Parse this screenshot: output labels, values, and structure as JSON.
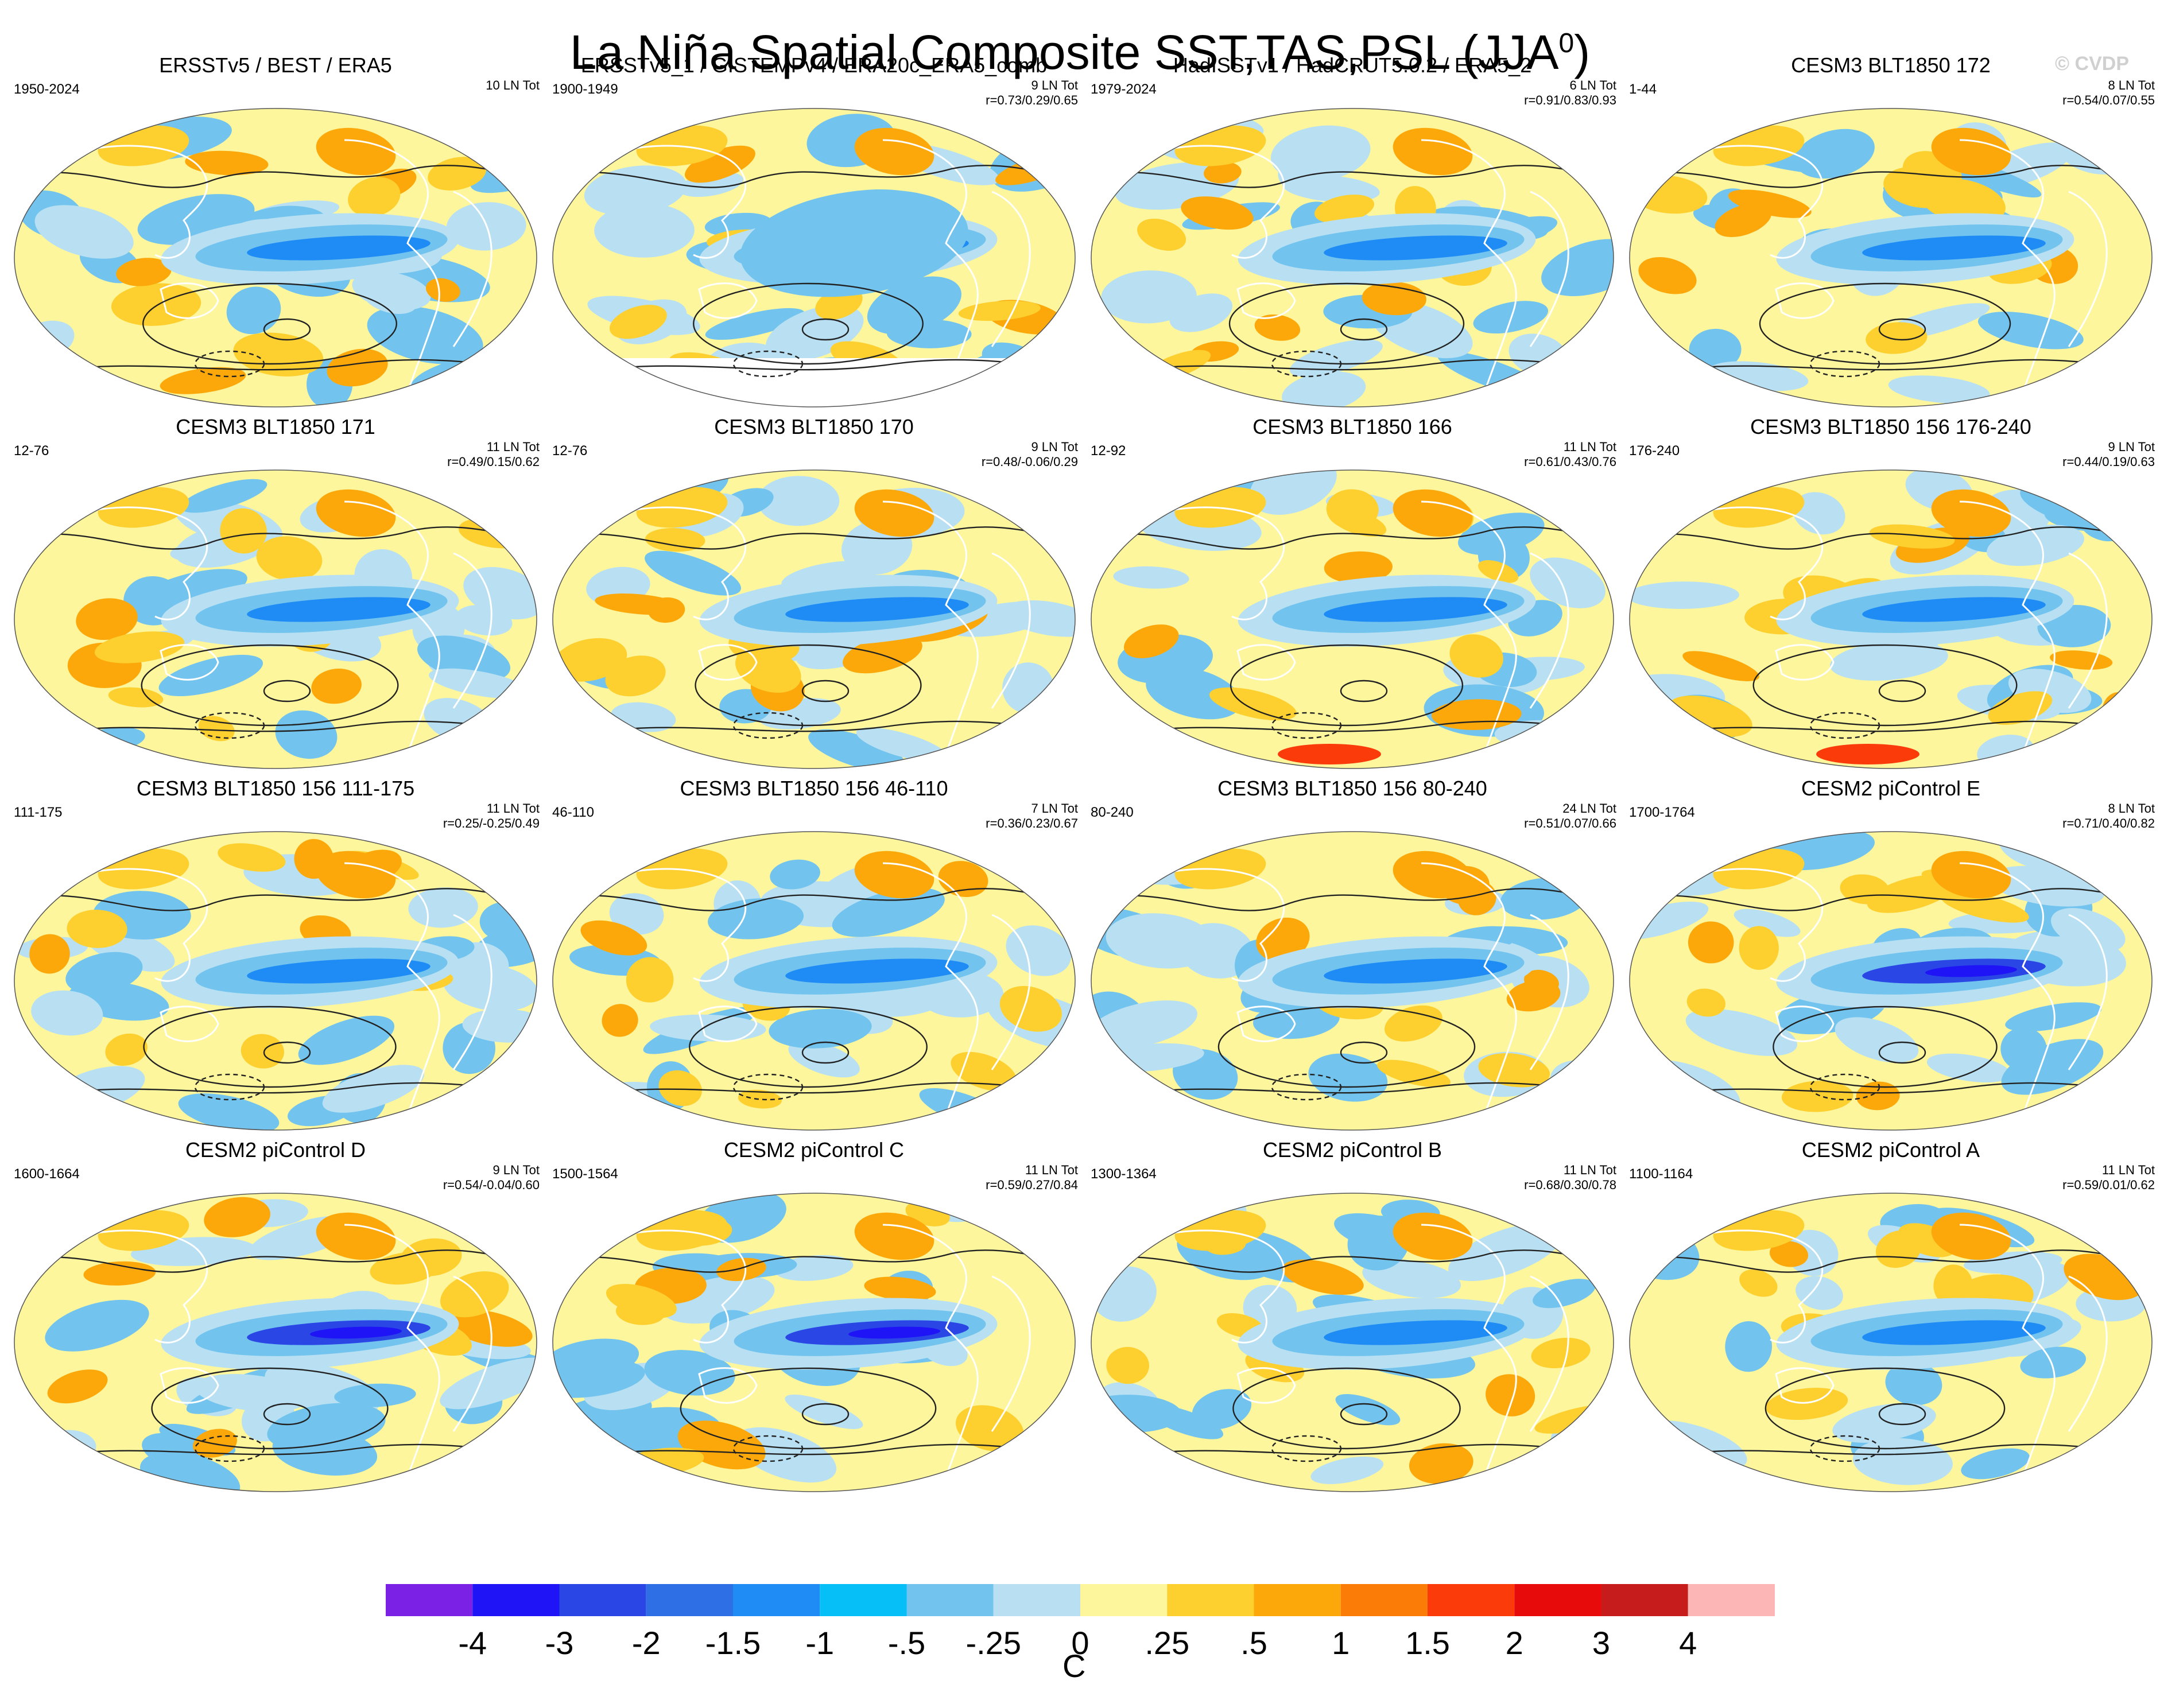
{
  "header": {
    "title": "La Niña Spatial Composite SST,TAS,PSL (JJA",
    "title_superscript": "0",
    "title_suffix": ")",
    "watermark": "© CVDP"
  },
  "panels": [
    {
      "title": "ERSSTv5 / BEST / ERA5",
      "years": "1950-2024",
      "count": "10 LN Tot",
      "stats": "",
      "pattern": "obs"
    },
    {
      "title": "ERSSTv5_1 / GISTEMPv4 / ERA20c_ERA5_comb",
      "years": "1900-1949",
      "count": "9 LN Tot",
      "stats": "r=0.73/0.29/0.65",
      "pattern": "obs-early"
    },
    {
      "title": "HadISSTv1 / HadCRUT5.0.2 / ERA5_2",
      "years": "1979-2024",
      "count": "6 LN Tot",
      "stats": "r=0.91/0.83/0.93",
      "pattern": "obs"
    },
    {
      "title": "CESM3 BLT1850 172",
      "years": "1-44",
      "count": "8 LN Tot",
      "stats": "r=0.54/0.07/0.55",
      "pattern": "model"
    },
    {
      "title": "CESM3 BLT1850 171",
      "years": "12-76",
      "count": "11 LN Tot",
      "stats": "r=0.49/0.15/0.62",
      "pattern": "model"
    },
    {
      "title": "CESM3 BLT1850 170",
      "years": "12-76",
      "count": "9 LN Tot",
      "stats": "r=0.48/-0.06/0.29",
      "pattern": "model"
    },
    {
      "title": "CESM3 BLT1850 166",
      "years": "12-92",
      "count": "11 LN Tot",
      "stats": "r=0.61/0.43/0.76",
      "pattern": "model-warm-south"
    },
    {
      "title": "CESM3 BLT1850 156 176-240",
      "years": "176-240",
      "count": "9 LN Tot",
      "stats": "r=0.44/0.19/0.63",
      "pattern": "model-warm-south"
    },
    {
      "title": "CESM3 BLT1850 156 111-175",
      "years": "111-175",
      "count": "11 LN Tot",
      "stats": "r=0.25/-0.25/0.49",
      "pattern": "model"
    },
    {
      "title": "CESM3 BLT1850 156 46-110",
      "years": "46-110",
      "count": "7 LN Tot",
      "stats": "r=0.36/0.23/0.67",
      "pattern": "model"
    },
    {
      "title": "CESM3 BLT1850 156 80-240",
      "years": "80-240",
      "count": "24 LN Tot",
      "stats": "r=0.51/0.07/0.66",
      "pattern": "model"
    },
    {
      "title": "CESM2 piControl E",
      "years": "1700-1764",
      "count": "8 LN Tot",
      "stats": "r=0.71/0.40/0.82",
      "pattern": "strong"
    },
    {
      "title": "CESM2 piControl D",
      "years": "1600-1664",
      "count": "9 LN Tot",
      "stats": "r=0.54/-0.04/0.60",
      "pattern": "strong"
    },
    {
      "title": "CESM2 piControl C",
      "years": "1500-1564",
      "count": "11 LN Tot",
      "stats": "r=0.59/0.27/0.84",
      "pattern": "strong"
    },
    {
      "title": "CESM2 piControl B",
      "years": "1300-1364",
      "count": "11 LN Tot",
      "stats": "r=0.68/0.30/0.78",
      "pattern": "model"
    },
    {
      "title": "CESM2 piControl A",
      "years": "1100-1164",
      "count": "11 LN Tot",
      "stats": "r=0.59/0.01/0.62",
      "pattern": "model"
    }
  ],
  "colorbar": {
    "unit_label": "C",
    "tick_labels": [
      "-4",
      "-3",
      "-2",
      "-1.5",
      "-1",
      "-.5",
      "-.25",
      "0",
      ".25",
      ".5",
      "1",
      "1.5",
      "2",
      "3",
      "4"
    ],
    "colors": [
      "#7b21e6",
      "#1e14f5",
      "#2a47e6",
      "#2e6fe6",
      "#1f8cf5",
      "#06bff6",
      "#72c4ee",
      "#b8e0f2",
      "#fdf69c",
      "#fdd030",
      "#fca80a",
      "#fc7c08",
      "#fc3b0b",
      "#e80b0b",
      "#c71c1c",
      "#fcb6b6"
    ]
  },
  "palette": {
    "ocean_base": "#fdf69c",
    "cool_light": "#b8e0f2",
    "cool_mid": "#72c4ee",
    "cool_strong": "#1f8cf5",
    "cool_deep": "#2a47e6",
    "warm_mid": "#fdd030",
    "warm_strong": "#fca80a",
    "warm_hot": "#fc3b0b",
    "contour": "#222222",
    "coast": "#ffffff"
  }
}
